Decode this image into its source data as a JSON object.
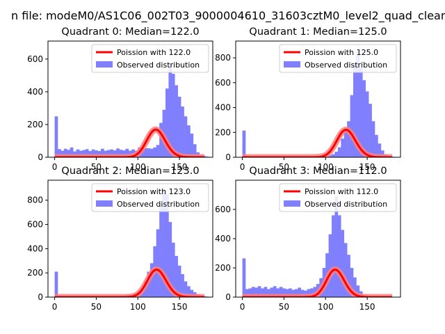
{
  "figure": {
    "suptitle": "n file: modeM0/AS1C06_002T03_9000004610_31603cztM0_level2_quad_clean"
  },
  "colors": {
    "hist": "#8080ff",
    "poisson": "#ff0000",
    "poisson_glow": "#ff8080"
  },
  "chart_data": [
    {
      "type": "bar",
      "title": "Quadrant 0: Median=122.0",
      "median": 122.0,
      "xlim": [
        -8,
        190
      ],
      "ylim": [
        0,
        710
      ],
      "xticks": [
        0,
        50,
        100,
        150
      ],
      "yticks": [
        0,
        200,
        400,
        600
      ],
      "legend": [
        "Poission with 122.0",
        "Observed distribution"
      ],
      "legend_loc": "upper right",
      "bin_width": 3.7,
      "observed": [
        250,
        50,
        40,
        52,
        45,
        60,
        36,
        48,
        40,
        44,
        50,
        38,
        48,
        42,
        38,
        52,
        40,
        44,
        48,
        42,
        54,
        46,
        42,
        52,
        40,
        48,
        40,
        60,
        60,
        55,
        55,
        52,
        60,
        75,
        210,
        290,
        420,
        570,
        510,
        440,
        370,
        310,
        250,
        195,
        145,
        80,
        30,
        15,
        8,
        4
      ],
      "poisson_scale": 4680
    },
    {
      "type": "bar",
      "title": "Quadrant 1: Median=125.0",
      "median": 125.0,
      "xlim": [
        -8,
        190
      ],
      "ylim": [
        0,
        935
      ],
      "xticks": [
        0,
        50,
        100,
        150
      ],
      "yticks": [
        0,
        200,
        400,
        600,
        800
      ],
      "legend": [
        "Poission with 125.0",
        "Observed distribution"
      ],
      "legend_loc": "upper right",
      "bin_width": 3.7,
      "observed": [
        215,
        8,
        8,
        5,
        5,
        5,
        5,
        5,
        5,
        5,
        5,
        5,
        5,
        5,
        5,
        5,
        5,
        5,
        5,
        5,
        5,
        5,
        5,
        5,
        5,
        5,
        8,
        8,
        15,
        25,
        45,
        80,
        150,
        220,
        290,
        500,
        750,
        850,
        720,
        620,
        530,
        430,
        290,
        180,
        110,
        55,
        25,
        10,
        5,
        3
      ],
      "poisson_scale": 6200
    },
    {
      "type": "bar",
      "title": "Quadrant 2: Median=123.0",
      "median": 123.0,
      "xlim": [
        -8,
        190
      ],
      "ylim": [
        0,
        965
      ],
      "xticks": [
        0,
        50,
        100,
        150
      ],
      "yticks": [
        0,
        200,
        400,
        600,
        800
      ],
      "legend": [
        "Poission with 123.0",
        "Observed distribution"
      ],
      "legend_loc": "upper right",
      "bin_width": 3.7,
      "observed": [
        210,
        5,
        5,
        5,
        5,
        5,
        5,
        5,
        5,
        5,
        5,
        5,
        5,
        5,
        5,
        5,
        5,
        5,
        5,
        5,
        8,
        10,
        10,
        15,
        20,
        25,
        30,
        45,
        70,
        130,
        210,
        280,
        420,
        560,
        760,
        890,
        850,
        620,
        450,
        340,
        260,
        190,
        130,
        90,
        60,
        40,
        25,
        15,
        8,
        5
      ],
      "poisson_scale": 6320
    },
    {
      "type": "bar",
      "title": "Quadrant 3: Median=112.0",
      "median": 112.0,
      "xlim": [
        -8,
        190
      ],
      "ylim": [
        0,
        800
      ],
      "xticks": [
        0,
        50,
        100,
        150
      ],
      "yticks": [
        0,
        200,
        400,
        600
      ],
      "legend": [
        "Poission with 112.0",
        "Observed distribution"
      ],
      "legend_loc": "upper right",
      "bin_width": 3.7,
      "observed": [
        265,
        55,
        60,
        70,
        65,
        75,
        60,
        70,
        55,
        65,
        75,
        60,
        70,
        60,
        55,
        60,
        50,
        55,
        65,
        50,
        45,
        55,
        60,
        70,
        90,
        130,
        200,
        300,
        430,
        560,
        690,
        560,
        460,
        370,
        290,
        200,
        135,
        80,
        40,
        15,
        8,
        5,
        3,
        2,
        2,
        2,
        1,
        1,
        1,
        1
      ],
      "poisson_scale": 5000
    }
  ]
}
